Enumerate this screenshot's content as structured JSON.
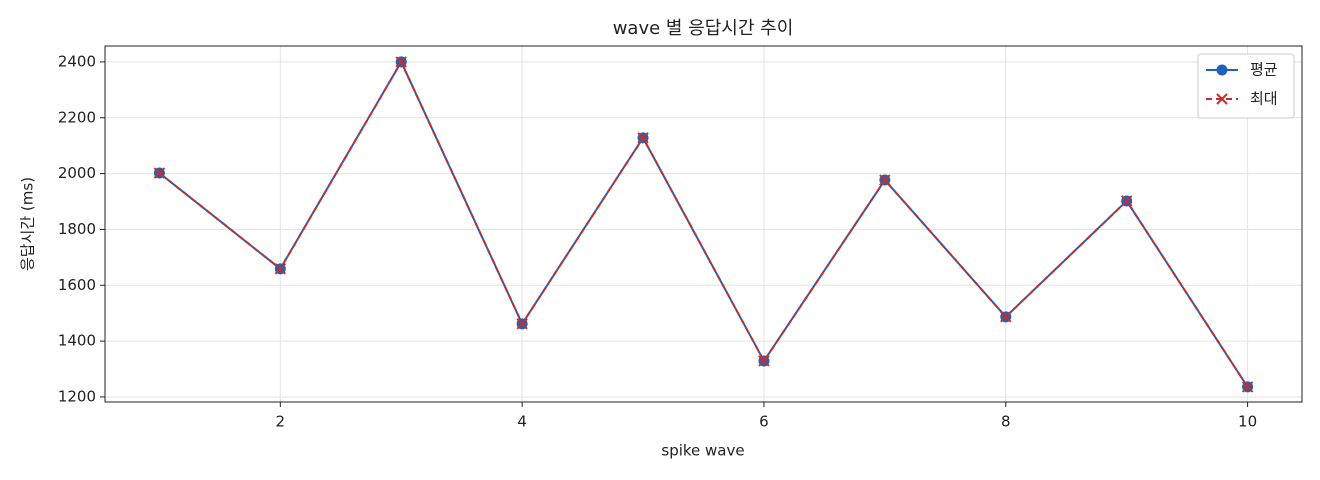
{
  "chart_data": {
    "type": "line",
    "title": "wave 별 응답시간 추이",
    "x_label": "spike wave",
    "y_label": "응답시간 (ms)",
    "x": [
      1,
      2,
      3,
      4,
      5,
      6,
      7,
      8,
      9,
      10
    ],
    "series": [
      {
        "name": "평균",
        "color": "#1e63b8",
        "linestyle": "solid",
        "marker": "circle",
        "values": [
          2002,
          1659,
          2400,
          1462,
          2128,
          1329,
          1977,
          1487,
          1902,
          1236
        ]
      },
      {
        "name": "최대",
        "color": "#c62d2d",
        "linestyle": "dashed",
        "marker": "x",
        "values": [
          2002,
          1659,
          2400,
          1462,
          2128,
          1329,
          1977,
          1487,
          1902,
          1236
        ]
      }
    ],
    "xlim": [
      0.55,
      10.45
    ],
    "xticks": [
      2,
      4,
      6,
      8,
      10
    ],
    "ylim": [
      1182,
      2457
    ],
    "yticks": [
      1200,
      1400,
      1600,
      1800,
      2000,
      2200,
      2400
    ],
    "grid": true,
    "legend": "upper right"
  }
}
